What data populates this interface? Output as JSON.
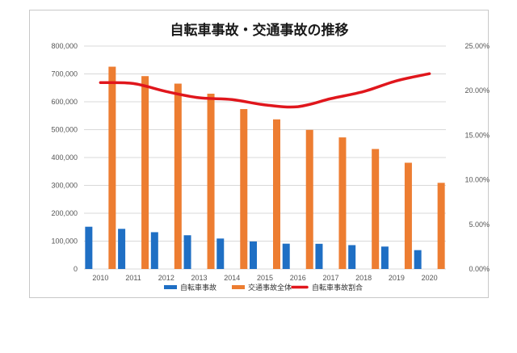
{
  "chart_data": {
    "type": "bar",
    "title": "自転車事故・交通事故の推移",
    "categories": [
      "2010",
      "2011",
      "2012",
      "2013",
      "2014",
      "2015",
      "2016",
      "2017",
      "2018",
      "2019",
      "2020"
    ],
    "series": [
      {
        "name": "自転車事故",
        "type": "bar",
        "axis": "left",
        "color": "#1f6fc4",
        "values": [
          151626,
          144058,
          132048,
          121040,
          109269,
          98700,
          90836,
          90407,
          85641,
          80473,
          67673
        ]
      },
      {
        "name": "交通事故全体",
        "type": "bar",
        "axis": "left",
        "color": "#ed7d31",
        "values": [
          725924,
          692084,
          665157,
          629033,
          573842,
          536899,
          499201,
          472165,
          430601,
          381237,
          309178
        ]
      },
      {
        "name": "自転車事故割合",
        "type": "line",
        "axis": "right",
        "color": "#e0161c",
        "values": [
          0.209,
          0.208,
          0.199,
          0.192,
          0.19,
          0.184,
          0.182,
          0.191,
          0.199,
          0.211,
          0.219
        ]
      }
    ],
    "ylim_left": [
      0,
      800000
    ],
    "ylim_right": [
      0,
      0.25
    ],
    "yticks_left": [
      "0",
      "100,000",
      "200,000",
      "300,000",
      "400,000",
      "500,000",
      "600,000",
      "700,000",
      "800,000"
    ],
    "yticks_right": [
      "0.00%",
      "5.00%",
      "10.00%",
      "15.00%",
      "20.00%",
      "25.00%"
    ],
    "grid": true,
    "legend_position": "bottom"
  }
}
